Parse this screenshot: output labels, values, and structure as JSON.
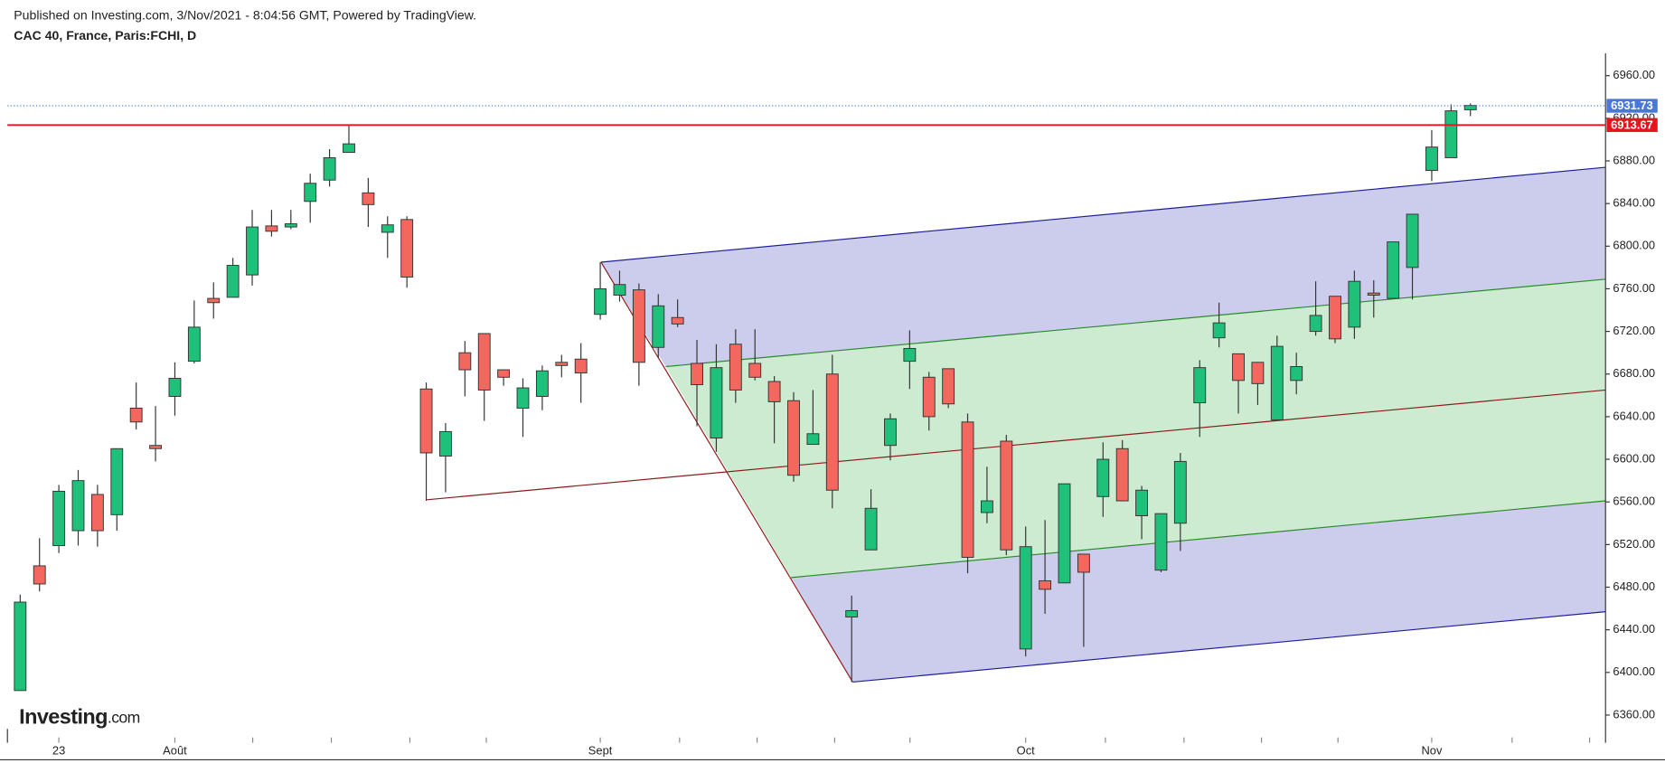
{
  "published": "Published on Investing.com, 3/Nov/2021 - 8:04:56 GMT, Powered by TradingView.",
  "chart_data": {
    "type": "candlestick",
    "title": "CAC 40, France, Paris:FCHI, D",
    "categories": [
      null,
      null,
      "23",
      null,
      null,
      null,
      null,
      null,
      "Août",
      null,
      null,
      null,
      null,
      null,
      null,
      null,
      null,
      null,
      null,
      null,
      null,
      null,
      null,
      null,
      null,
      null,
      null,
      null,
      null,
      null,
      "Sept",
      null,
      null,
      null,
      null,
      null,
      null,
      null,
      null,
      null,
      null,
      null,
      null,
      null,
      null,
      null,
      null,
      null,
      null,
      null,
      null,
      null,
      "Oct",
      null,
      null,
      null,
      null,
      null,
      null,
      null,
      null,
      null,
      null,
      null,
      null,
      null,
      null,
      null,
      null,
      null,
      null,
      null,
      null,
      "Nov",
      null,
      null
    ],
    "open": [
      6383,
      6500,
      6519,
      6533,
      6567,
      6548,
      6648,
      6613,
      6659,
      6692,
      6751,
      6752,
      6773,
      6819,
      6818,
      6842,
      6862,
      6888,
      6850,
      6813,
      6825,
      6666,
      6603,
      6700,
      6718,
      6684,
      6648,
      6659,
      6691,
      6694,
      6736,
      6754,
      6759,
      6705,
      6733,
      6690,
      6620,
      6708,
      6690,
      6673,
      6655,
      6614,
      6680,
      6452,
      6515,
      6613,
      6692,
      6677,
      6685,
      6635,
      6550,
      6617,
      6422,
      6486,
      6484,
      6511,
      6565,
      6610,
      6547,
      6496,
      6540,
      6653,
      6714,
      6699,
      6691,
      6637,
      6674,
      6720,
      6753,
      6724,
      6756,
      6751,
      6780,
      6871,
      6883,
      6928
    ],
    "high": [
      6473,
      6526,
      6576,
      6590,
      6576,
      6610,
      6672,
      6650,
      6691,
      6749,
      6766,
      6789,
      6834,
      6834,
      6834,
      6868,
      6891,
      6913,
      6864,
      6828,
      6828,
      6672,
      6634,
      6711,
      6718,
      6684,
      6676,
      6688,
      6698,
      6709,
      6785,
      6777,
      6765,
      6755,
      6750,
      6712,
      6708,
      6722,
      6722,
      6678,
      6663,
      6665,
      6698,
      6472,
      6572,
      6643,
      6721,
      6682,
      6685,
      6643,
      6593,
      6623,
      6537,
      6543,
      6577,
      6511,
      6616,
      6618,
      6575,
      6549,
      6606,
      6693,
      6747,
      6699,
      6691,
      6716,
      6700,
      6767,
      6753,
      6777,
      6768,
      6804,
      6830,
      6909,
      6933,
      6934
    ],
    "low": [
      6383,
      6476,
      6512,
      6519,
      6518,
      6533,
      6628,
      6598,
      6641,
      6690,
      6732,
      6752,
      6763,
      6809,
      6816,
      6822,
      6856,
      6888,
      6818,
      6789,
      6761,
      6561,
      6569,
      6659,
      6636,
      6669,
      6621,
      6646,
      6677,
      6653,
      6731,
      6748,
      6669,
      6695,
      6724,
      6631,
      6607,
      6653,
      6674,
      6615,
      6579,
      6614,
      6554,
      6391,
      6515,
      6599,
      6666,
      6627,
      6648,
      6493,
      6540,
      6510,
      6415,
      6455,
      6484,
      6424,
      6546,
      6561,
      6525,
      6494,
      6514,
      6621,
      6705,
      6643,
      6651,
      6637,
      6661,
      6716,
      6709,
      6713,
      6733,
      6751,
      6750,
      6861,
      6883,
      6922
    ],
    "close": [
      6466,
      6483,
      6570,
      6580,
      6533,
      6610,
      6635,
      6610,
      6676,
      6724,
      6747,
      6782,
      6818,
      6814,
      6821,
      6859,
      6883,
      6896,
      6839,
      6820,
      6771,
      6606,
      6626,
      6684,
      6665,
      6677,
      6667,
      6683,
      6688,
      6681,
      6760,
      6764,
      6691,
      6744,
      6727,
      6670,
      6686,
      6665,
      6677,
      6654,
      6585,
      6624,
      6571,
      6458,
      6554,
      6638,
      6704,
      6640,
      6652,
      6508,
      6561,
      6515,
      6518,
      6478,
      6577,
      6494,
      6600,
      6561,
      6571,
      6549,
      6598,
      6686,
      6728,
      6674,
      6671,
      6706,
      6687,
      6735,
      6713,
      6767,
      6754,
      6804,
      6830,
      6893,
      6927,
      6932
    ],
    "up_color": "#1ec07a",
    "down_color": "#f4675f",
    "ylim": [
      6341,
      6981
    ],
    "yticks": [
      {
        "value": 6360,
        "label": "6360.00"
      },
      {
        "value": 6400,
        "label": "6400.00"
      },
      {
        "value": 6440,
        "label": "6440.00"
      },
      {
        "value": 6480,
        "label": "6480.00"
      },
      {
        "value": 6520,
        "label": "6520.00"
      },
      {
        "value": 6560,
        "label": "6560.00"
      },
      {
        "value": 6600,
        "label": "6600.00"
      },
      {
        "value": 6640,
        "label": "6640.00"
      },
      {
        "value": 6680,
        "label": "6680.00"
      },
      {
        "value": 6720,
        "label": "6720.00"
      },
      {
        "value": 6760,
        "label": "6760.00"
      },
      {
        "value": 6800,
        "label": "6800.00"
      },
      {
        "value": 6840,
        "label": "6840.00"
      },
      {
        "value": 6880,
        "label": "6880.00"
      },
      {
        "value": 6920,
        "label": "6920.00"
      },
      {
        "value": 6960,
        "label": "6960.00"
      }
    ],
    "price_lines": [
      {
        "value": 6931.73,
        "color": "#4a78d8"
      },
      {
        "value": 6913.67,
        "color": "#e8141b"
      }
    ]
  },
  "logo": {
    "name": "Investing",
    "suffix": ".com"
  }
}
